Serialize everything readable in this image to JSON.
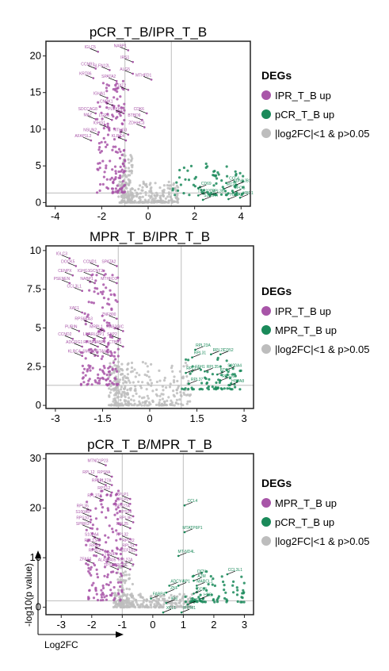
{
  "colors": {
    "up_first": "#a855a8",
    "up_second": "#1a8a5a",
    "ns": "#bdbdbd",
    "frame": "#222222",
    "threshold": "#c8c8c8"
  },
  "axis_labels": {
    "x": "Log2FC",
    "y": "-log10(p value)"
  },
  "chart_data": [
    {
      "type": "scatter",
      "title": "pCR_T_B/IPR_T_B",
      "xlim": [
        -4.4,
        4.4
      ],
      "ylim": [
        -0.5,
        22
      ],
      "x_ticks": [
        -4,
        -2,
        0,
        2,
        4
      ],
      "y_ticks": [
        0,
        5,
        10,
        15,
        20
      ],
      "fc_threshold": 1,
      "p_line": 1.3,
      "legend": {
        "title": "DEGs",
        "entries": [
          "IPR_T_B up",
          "pCR_T_B up",
          "|log2FC|<1 & p>0.05"
        ]
      },
      "labels_left": [
        {
          "g": "IGLC5",
          "x": -2.5,
          "y": 21.0
        },
        {
          "g": "NABP1",
          "x": -1.2,
          "y": 21.2
        },
        {
          "g": "IRS1",
          "x": -1.0,
          "y": 19.6
        },
        {
          "g": "CCNB1",
          "x": -2.6,
          "y": 18.7
        },
        {
          "g": "SLFN12L",
          "x": -2.0,
          "y": 18.5
        },
        {
          "g": "ALG5",
          "x": -1.0,
          "y": 18.0
        },
        {
          "g": "KRT86",
          "x": -2.7,
          "y": 17.4
        },
        {
          "g": "SPATA2",
          "x": -1.7,
          "y": 17.0
        },
        {
          "g": "MTHFD1",
          "x": -0.2,
          "y": 17.2
        },
        {
          "g": "STAT2",
          "x": -1.2,
          "y": 15.8
        },
        {
          "g": "IGHA1",
          "x": -2.1,
          "y": 14.7
        },
        {
          "g": "CNPK1",
          "x": -1.8,
          "y": 13.6
        },
        {
          "g": "SDCCAG8",
          "x": -2.6,
          "y": 12.6
        },
        {
          "g": "PLEKHF",
          "x": -1.4,
          "y": 12.6
        },
        {
          "g": "CDK6",
          "x": -0.4,
          "y": 12.6
        },
        {
          "g": "MAZ",
          "x": -2.6,
          "y": 11.8
        },
        {
          "g": "LGR6",
          "x": -1.9,
          "y": 11.7
        },
        {
          "g": "BTBD9",
          "x": -0.6,
          "y": 11.7
        },
        {
          "g": "IGHG1",
          "x": -2.1,
          "y": 10.7
        },
        {
          "g": "ZDHHC3",
          "x": -0.5,
          "y": 10.7
        },
        {
          "g": "NSUN2",
          "x": -2.5,
          "y": 9.7
        },
        {
          "g": "NTHG3",
          "x": -1.2,
          "y": 9.7
        },
        {
          "g": "AFAP1L2",
          "x": -2.8,
          "y": 8.9
        },
        {
          "g": "KLRC4",
          "x": -1.3,
          "y": 8.9
        }
      ],
      "labels_right": [
        {
          "g": "CCL4",
          "x": 3.7,
          "y": 3.1
        },
        {
          "g": "DNAJB1",
          "x": 4.1,
          "y": 2.8
        },
        {
          "g": "CD69",
          "x": 2.5,
          "y": 2.4
        },
        {
          "g": "MT2A",
          "x": 3.6,
          "y": 2.3
        },
        {
          "g": "FOS",
          "x": 4.0,
          "y": 1.8
        },
        {
          "g": "TSC22D3",
          "x": 2.5,
          "y": 1.4
        },
        {
          "g": "RPL39",
          "x": 3.0,
          "y": 1.4
        },
        {
          "g": "S100A4",
          "x": 2.7,
          "y": 0.8
        },
        {
          "g": "HSPA8",
          "x": 3.8,
          "y": 0.9
        },
        {
          "g": "YRD1",
          "x": 4.3,
          "y": 1.1
        }
      ]
    },
    {
      "type": "scatter",
      "title": "MPR_T_B/IPR_T_B",
      "xlim": [
        -3.3,
        3.3
      ],
      "ylim": [
        -0.2,
        10.3
      ],
      "x_ticks": [
        -3,
        -1.5,
        0,
        1.5,
        3
      ],
      "y_ticks": [
        0,
        2.5,
        5,
        7.5,
        10
      ],
      "fc_threshold": 1,
      "p_line": 1.3,
      "legend": {
        "title": "DEGs",
        "entries": [
          "IPR_T_B up",
          "MPR_T_B up",
          "|log2FC|<1 & p>0.05"
        ]
      },
      "labels_left": [
        {
          "g": "IGLC3",
          "x": -2.8,
          "y": 9.7
        },
        {
          "g": "DOCK5",
          "x": -2.6,
          "y": 9.2
        },
        {
          "g": "CCND1",
          "x": -1.9,
          "y": 9.2
        },
        {
          "g": "SPATA2",
          "x": -1.3,
          "y": 9.2
        },
        {
          "g": "CENPX",
          "x": -2.7,
          "y": 8.6
        },
        {
          "g": "IGHG1",
          "x": -2.1,
          "y": 8.6
        },
        {
          "g": "GCNT2",
          "x": -1.7,
          "y": 8.6
        },
        {
          "g": "PSENEN",
          "x": -2.8,
          "y": 8.1
        },
        {
          "g": "NABP1",
          "x": -2.0,
          "y": 8.1
        },
        {
          "g": "MTHFD1",
          "x": -1.3,
          "y": 8.1
        },
        {
          "g": "CCL3L1",
          "x": -2.4,
          "y": 7.6
        },
        {
          "g": "XAF1",
          "x": -2.4,
          "y": 6.2
        },
        {
          "g": "ZNF800",
          "x": -1.3,
          "y": 5.8
        },
        {
          "g": "RPS6KA3",
          "x": -2.1,
          "y": 5.5
        },
        {
          "g": "PURIN",
          "x": -2.5,
          "y": 5.0
        },
        {
          "g": "MRPL1",
          "x": -1.7,
          "y": 5.0
        },
        {
          "g": "RAB3GIC",
          "x": -1.1,
          "y": 5.0
        },
        {
          "g": "CCND2",
          "x": -2.7,
          "y": 4.5
        },
        {
          "g": "LPP",
          "x": -2.0,
          "y": 4.5
        },
        {
          "g": "ARL6IP1",
          "x": -1.7,
          "y": 4.5
        },
        {
          "g": "SAP2",
          "x": -1.2,
          "y": 4.5
        },
        {
          "g": "ADGRG1",
          "x": -2.4,
          "y": 4.0
        },
        {
          "g": "RRBP1",
          "x": -1.9,
          "y": 4.0
        },
        {
          "g": "NABP2",
          "x": -1.6,
          "y": 4.0
        },
        {
          "g": "CTBP1",
          "x": -1.1,
          "y": 4.0
        },
        {
          "g": "KLRC4",
          "x": -2.4,
          "y": 3.4
        },
        {
          "g": "SMIM14",
          "x": -1.9,
          "y": 3.4
        },
        {
          "g": "STAU2",
          "x": -1.5,
          "y": 3.4
        }
      ],
      "labels_right": [
        {
          "g": "RPL23A",
          "x": 1.7,
          "y": 3.8
        },
        {
          "g": "RPL21",
          "x": 2.2,
          "y": 3.5
        },
        {
          "g": "CD52",
          "x": 2.5,
          "y": 3.5
        },
        {
          "g": "RPL31",
          "x": 1.6,
          "y": 3.3
        },
        {
          "g": "S100A4",
          "x": 2.7,
          "y": 2.5
        },
        {
          "g": "FTH1",
          "x": 1.6,
          "y": 2.4
        },
        {
          "g": "BTG1",
          "x": 2.4,
          "y": 2.2
        },
        {
          "g": "RPL27A",
          "x": 1.4,
          "y": 2.3
        },
        {
          "g": "RPL35",
          "x": 2.0,
          "y": 2.4
        },
        {
          "g": "RPS26",
          "x": 2.5,
          "y": 1.8
        },
        {
          "g": "HSPA8",
          "x": 2.8,
          "y": 1.5
        },
        {
          "g": "RPL37",
          "x": 1.5,
          "y": 1.6
        }
      ]
    },
    {
      "type": "scatter",
      "title": "pCR_T_B/MPR_T_B",
      "xlim": [
        -3.5,
        3.3
      ],
      "ylim": [
        -1.5,
        31
      ],
      "x_ticks": [
        -3,
        -2,
        -1,
        0,
        1,
        2,
        3
      ],
      "y_ticks": [
        0,
        10,
        20,
        30
      ],
      "fc_threshold": 1,
      "p_line": 1.3,
      "legend": {
        "title": "DEGs",
        "entries": [
          "MPR_T_B up",
          "pCR_T_B up",
          "|log2FC|<1 & p>0.05"
        ]
      },
      "labels_left": [
        {
          "g": "MTND1P23",
          "x": -1.8,
          "y": 29.3
        },
        {
          "g": "RPL12",
          "x": -2.1,
          "y": 27.0
        },
        {
          "g": "RPS8A",
          "x": -1.6,
          "y": 27.0
        },
        {
          "g": "RPL31",
          "x": -1.8,
          "y": 25.3
        },
        {
          "g": "RPL27A",
          "x": -1.6,
          "y": 25.3
        },
        {
          "g": "RPS12",
          "x": -1.6,
          "y": 23.8
        },
        {
          "g": "RPL37A",
          "x": -1.9,
          "y": 22.3
        },
        {
          "g": "RPLP1",
          "x": -1.0,
          "y": 22.5
        },
        {
          "g": "RPLP0",
          "x": -1.0,
          "y": 21.5
        },
        {
          "g": "RPL35",
          "x": -2.3,
          "y": 20.2
        },
        {
          "g": "RPS27A",
          "x": -1.0,
          "y": 20.2
        },
        {
          "g": "S100A6",
          "x": -2.3,
          "y": 19.0
        },
        {
          "g": "RPS29",
          "x": -0.9,
          "y": 19.0
        },
        {
          "g": "RPS10",
          "x": -2.3,
          "y": 17.8
        },
        {
          "g": "RPL36",
          "x": -0.9,
          "y": 17.8
        },
        {
          "g": "SPRR3",
          "x": -2.3,
          "y": 16.6
        },
        {
          "g": "RPL25",
          "x": -1.0,
          "y": 16.6
        },
        {
          "g": "S100A4",
          "x": -2.0,
          "y": 14.4
        },
        {
          "g": "RPL32",
          "x": -1.0,
          "y": 14.4
        },
        {
          "g": "RPL13A",
          "x": -2.0,
          "y": 13.2
        },
        {
          "g": "RPL22",
          "x": -0.8,
          "y": 13.2
        },
        {
          "g": "RPS3",
          "x": -1.9,
          "y": 12.2
        },
        {
          "g": "RPL14",
          "x": -0.8,
          "y": 12.2
        },
        {
          "g": "RPS23",
          "x": -1.9,
          "y": 11.2
        },
        {
          "g": "EEF1B2",
          "x": -0.8,
          "y": 11.2
        },
        {
          "g": "TXNIP",
          "x": -1.4,
          "y": 10.5
        },
        {
          "g": "ZFAS1",
          "x": -2.2,
          "y": 9.5
        },
        {
          "g": "AL450405",
          "x": -1.5,
          "y": 9.3
        },
        {
          "g": "RPL27A",
          "x": -0.9,
          "y": 9.3
        },
        {
          "g": "TPSB2",
          "x": -1.4,
          "y": 8.3
        },
        {
          "g": "RGCC",
          "x": -1.0,
          "y": 8.3
        }
      ],
      "labels_right": [
        {
          "g": "CCL4",
          "x": 1.3,
          "y": 21.2
        },
        {
          "g": "MTATP6P1",
          "x": 1.3,
          "y": 15.8
        },
        {
          "g": "MT-ND4L",
          "x": 1.1,
          "y": 11.0
        },
        {
          "g": "CCL3L1",
          "x": 2.7,
          "y": 7.3
        },
        {
          "g": "DCN",
          "x": 1.6,
          "y": 7.0
        },
        {
          "g": "A2M",
          "x": 1.6,
          "y": 6.0
        },
        {
          "g": "ADCY4",
          "x": 0.8,
          "y": 5.0
        },
        {
          "g": "AP1",
          "x": 1.1,
          "y": 5.0
        },
        {
          "g": "MARCL1",
          "x": 1.7,
          "y": 5.0
        },
        {
          "g": "ZNF",
          "x": 0.7,
          "y": 3.6
        },
        {
          "g": "CCL3",
          "x": 1.6,
          "y": 3.4
        },
        {
          "g": "FABP4",
          "x": 0.2,
          "y": 2.4
        },
        {
          "g": "HBB",
          "x": 1.8,
          "y": 2.3
        },
        {
          "g": "IFI6",
          "x": 0.7,
          "y": 1.5
        },
        {
          "g": "ADIRF",
          "x": 1.4,
          "y": 1.2
        },
        {
          "g": "XCL1",
          "x": 0.6,
          "y": -0.4
        },
        {
          "g": "IFITM1",
          "x": 1.2,
          "y": -0.4
        }
      ]
    }
  ]
}
